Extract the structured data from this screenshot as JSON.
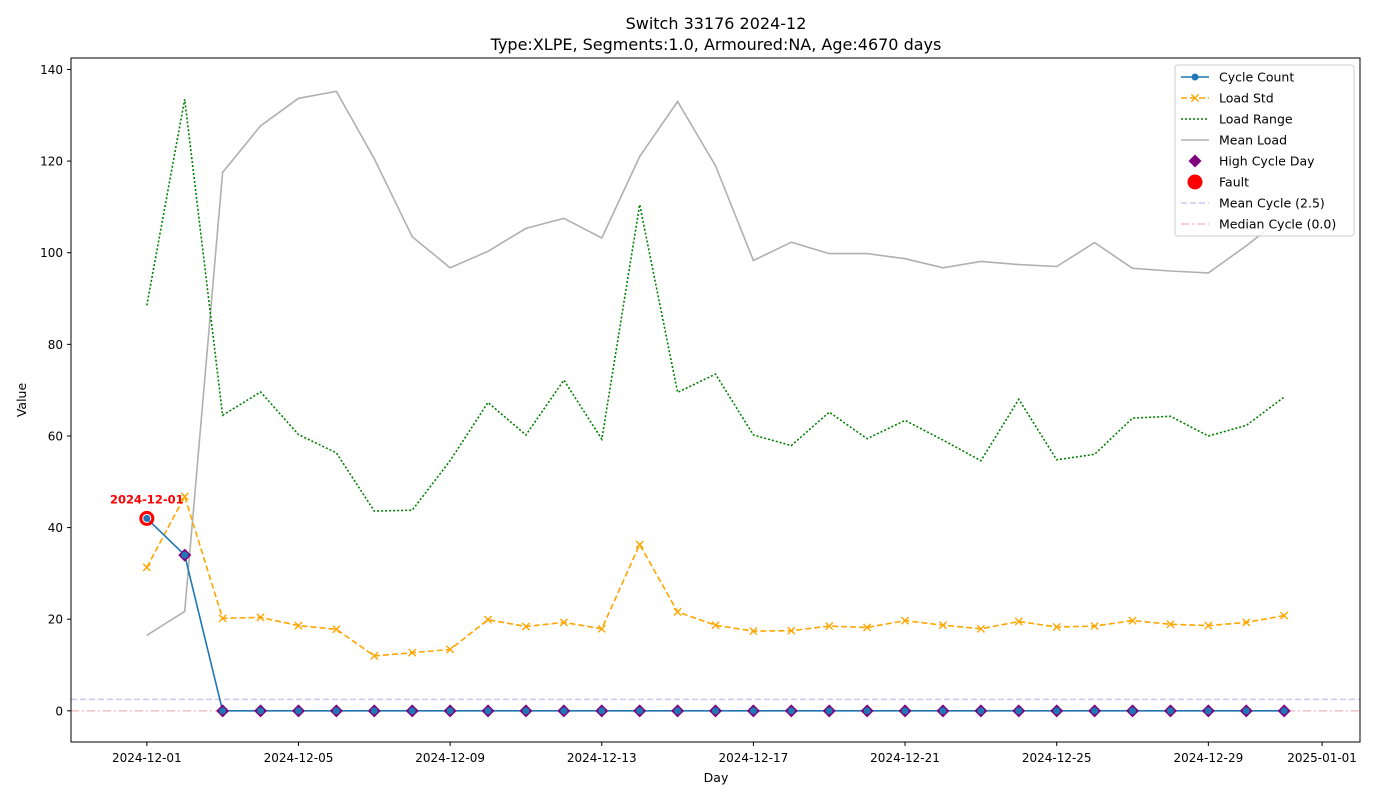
{
  "chart_data": {
    "type": "line",
    "title": "Switch 33176 2024-12",
    "subtitle": "Type:XLPE, Segments:1.0, Armoured:NA, Age:4670 days",
    "xlabel": "Day",
    "ylabel": "Value",
    "xlim": [
      "2024-11-29",
      "2025-01-02"
    ],
    "ylim": [
      -6.8,
      142.5
    ],
    "x_ticks": [
      "2024-12-01",
      "2024-12-05",
      "2024-12-09",
      "2024-12-13",
      "2024-12-17",
      "2024-12-21",
      "2024-12-25",
      "2024-12-29",
      "2025-01-01"
    ],
    "y_ticks": [
      0,
      20,
      40,
      60,
      80,
      100,
      120,
      140
    ],
    "x": [
      "2024-12-01",
      "2024-12-02",
      "2024-12-03",
      "2024-12-04",
      "2024-12-05",
      "2024-12-06",
      "2024-12-07",
      "2024-12-08",
      "2024-12-09",
      "2024-12-10",
      "2024-12-11",
      "2024-12-12",
      "2024-12-13",
      "2024-12-14",
      "2024-12-15",
      "2024-12-16",
      "2024-12-17",
      "2024-12-18",
      "2024-12-19",
      "2024-12-20",
      "2024-12-21",
      "2024-12-22",
      "2024-12-23",
      "2024-12-24",
      "2024-12-25",
      "2024-12-26",
      "2024-12-27",
      "2024-12-28",
      "2024-12-29",
      "2024-12-30",
      "2024-12-31"
    ],
    "series": [
      {
        "name": "Mean Load",
        "style": "solid",
        "marker": "none",
        "color": "#b0b0b0",
        "values": [
          16.5,
          21.7,
          117.5,
          127.7,
          133.7,
          135.2,
          120.5,
          103.5,
          96.7,
          100.3,
          105.3,
          107.5,
          103.2,
          121.0,
          133.0,
          119.0,
          98.3,
          102.3,
          99.8,
          99.8,
          98.7,
          96.7,
          98.1,
          97.4,
          97.0,
          102.2,
          96.6,
          96.0,
          95.6,
          101.5,
          108.0
        ]
      },
      {
        "name": "Load Range",
        "style": "dotted",
        "marker": "none",
        "color": "#008000",
        "values": [
          88.5,
          133.5,
          64.5,
          69.6,
          60.3,
          56.3,
          43.6,
          43.8,
          54.6,
          67.3,
          60.2,
          72.2,
          59.3,
          110.5,
          69.5,
          73.5,
          60.2,
          57.9,
          65.2,
          59.4,
          63.4,
          59.1,
          54.6,
          68.0,
          54.8,
          56.0,
          63.9,
          64.3,
          60.0,
          62.3,
          68.5
        ]
      },
      {
        "name": "Load Std",
        "style": "dashed",
        "marker": "x",
        "color": "#ffa500",
        "values": [
          31.3,
          46.8,
          20.2,
          20.4,
          18.6,
          17.8,
          12.0,
          12.7,
          13.4,
          19.9,
          18.4,
          19.3,
          17.9,
          36.3,
          21.6,
          18.7,
          17.4,
          17.5,
          18.5,
          18.2,
          19.7,
          18.7,
          17.9,
          19.5,
          18.3,
          18.5,
          19.7,
          18.9,
          18.6,
          19.3,
          20.8
        ]
      },
      {
        "name": "Cycle Count",
        "style": "solid",
        "marker": "o",
        "color": "#1f77b4",
        "values": [
          42,
          34,
          0,
          0,
          0,
          0,
          0,
          0,
          0,
          0,
          0,
          0,
          0,
          0,
          0,
          0,
          0,
          0,
          0,
          0,
          0,
          0,
          0,
          0,
          0,
          0,
          0,
          0,
          0,
          0,
          0
        ]
      }
    ],
    "high_cycle_days": {
      "name": "High Cycle Day",
      "color": "#800080",
      "x": [
        "2024-12-02",
        "2024-12-03",
        "2024-12-04",
        "2024-12-05",
        "2024-12-06",
        "2024-12-07",
        "2024-12-08",
        "2024-12-09",
        "2024-12-10",
        "2024-12-11",
        "2024-12-12",
        "2024-12-13",
        "2024-12-14",
        "2024-12-15",
        "2024-12-16",
        "2024-12-17",
        "2024-12-18",
        "2024-12-19",
        "2024-12-20",
        "2024-12-21",
        "2024-12-22",
        "2024-12-23",
        "2024-12-24",
        "2024-12-25",
        "2024-12-26",
        "2024-12-27",
        "2024-12-28",
        "2024-12-29",
        "2024-12-30",
        "2024-12-31"
      ],
      "y": [
        34,
        0,
        0,
        0,
        0,
        0,
        0,
        0,
        0,
        0,
        0,
        0,
        0,
        0,
        0,
        0,
        0,
        0,
        0,
        0,
        0,
        0,
        0,
        0,
        0,
        0,
        0,
        0,
        0,
        0
      ]
    },
    "fault": {
      "name": "Fault",
      "color": "#ff0000",
      "x": "2024-12-01",
      "y": 42,
      "label": "2024-12-01"
    },
    "hlines": [
      {
        "name": "Mean Cycle (2.5)",
        "y": 2.5,
        "color": "#c8c8f5",
        "style": "dashed"
      },
      {
        "name": "Median Cycle (0.0)",
        "y": 0.0,
        "color": "#f5c0c0",
        "style": "dashdot"
      }
    ],
    "legend": {
      "position": "top-right",
      "entries": [
        "Cycle Count",
        "Load Std",
        "Load Range",
        "Mean Load",
        "High Cycle Day",
        "Fault",
        "Mean Cycle (2.5)",
        "Median Cycle (0.0)"
      ]
    },
    "grid": false
  }
}
